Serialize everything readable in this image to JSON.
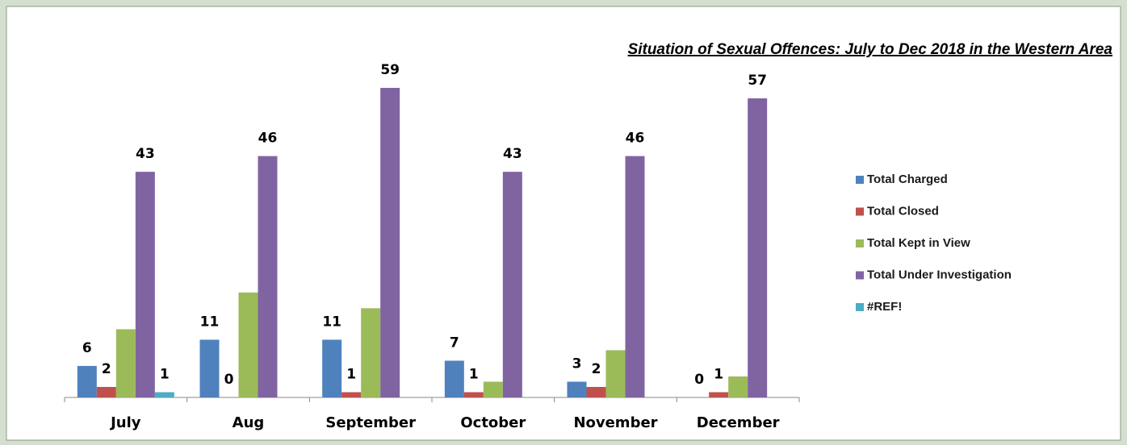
{
  "chart_data": {
    "type": "bar",
    "title": "Situation of Sexual Offences: July to Dec 2018 in the Western Area",
    "categories": [
      "July",
      "Aug",
      "September",
      "October",
      "November",
      "December"
    ],
    "series": [
      {
        "name": "Total Charged",
        "color": "#4f81bd",
        "values": [
          6,
          11,
          11,
          7,
          3,
          0
        ],
        "data_labels": true
      },
      {
        "name": "Total Closed",
        "color": "#c0504d",
        "values": [
          2,
          0,
          1,
          1,
          2,
          1
        ],
        "data_labels": true
      },
      {
        "name": "Total Kept in View",
        "color": "#9bbb59",
        "values": [
          13,
          20,
          17,
          3,
          9,
          4
        ],
        "data_labels": false
      },
      {
        "name": "Total Under Investigation",
        "color": "#8064a2",
        "values": [
          43,
          46,
          59,
          43,
          46,
          57
        ],
        "data_labels": true
      },
      {
        "name": "#REF!",
        "color": "#4bacc6",
        "values": [
          1,
          null,
          null,
          null,
          null,
          null
        ],
        "data_labels": true
      }
    ],
    "ylim": [
      0,
      60
    ],
    "legend": "right"
  }
}
